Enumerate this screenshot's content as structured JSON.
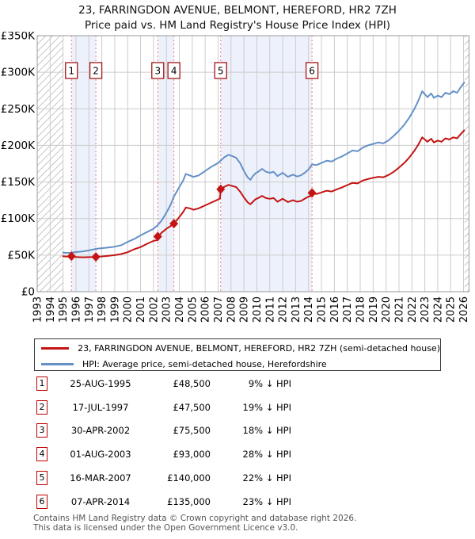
{
  "title": {
    "line1": "23, FARRINGDON AVENUE, BELMONT, HEREFORD, HR2 7ZH",
    "line2": "Price paid vs. HM Land Registry's House Price Index (HPI)"
  },
  "chart_data": {
    "type": "line",
    "x_range": [
      1993,
      2026.42
    ],
    "ylim_k": [
      0,
      350
    ],
    "grid": true,
    "y_ticks": [
      {
        "v": 0,
        "label": "£0"
      },
      {
        "v": 50,
        "label": "£50K"
      },
      {
        "v": 100,
        "label": "£100K"
      },
      {
        "v": 150,
        "label": "£150K"
      },
      {
        "v": 200,
        "label": "£200K"
      },
      {
        "v": 250,
        "label": "£250K"
      },
      {
        "v": 300,
        "label": "£300K"
      },
      {
        "v": 350,
        "label": "£350K"
      }
    ],
    "x_ticks": [
      1993,
      1994,
      1995,
      1996,
      1997,
      1998,
      1999,
      2000,
      2001,
      2002,
      2003,
      2004,
      2005,
      2006,
      2007,
      2008,
      2009,
      2010,
      2011,
      2012,
      2013,
      2014,
      2015,
      2016,
      2017,
      2018,
      2019,
      2020,
      2021,
      2022,
      2023,
      2024,
      2025,
      2026
    ],
    "series": [
      {
        "name": "hpi",
        "color": "#6591c8",
        "points": [
          [
            1995.0,
            53.5
          ],
          [
            1995.3,
            53
          ],
          [
            1995.65,
            53.3
          ],
          [
            1996.0,
            54.2
          ],
          [
            1996.5,
            55
          ],
          [
            1997.0,
            56.5
          ],
          [
            1997.54,
            58.5
          ],
          [
            1998.0,
            59.5
          ],
          [
            1998.5,
            60.5
          ],
          [
            1999.0,
            61.5
          ],
          [
            1999.5,
            63.5
          ],
          [
            2000.0,
            68
          ],
          [
            2000.5,
            72
          ],
          [
            2001.0,
            77
          ],
          [
            2001.5,
            81.5
          ],
          [
            2002.0,
            86
          ],
          [
            2002.33,
            91
          ],
          [
            2002.66,
            98
          ],
          [
            2003.0,
            108
          ],
          [
            2003.3,
            118
          ],
          [
            2003.58,
            130
          ],
          [
            2004.0,
            143
          ],
          [
            2004.3,
            152
          ],
          [
            2004.5,
            161
          ],
          [
            2004.8,
            159
          ],
          [
            2005.1,
            157
          ],
          [
            2005.5,
            159
          ],
          [
            2006.0,
            165
          ],
          [
            2006.5,
            171
          ],
          [
            2007.0,
            176
          ],
          [
            2007.2,
            179
          ],
          [
            2007.5,
            184
          ],
          [
            2007.8,
            187
          ],
          [
            2008.0,
            186
          ],
          [
            2008.4,
            183
          ],
          [
            2008.7,
            176
          ],
          [
            2009.0,
            165
          ],
          [
            2009.3,
            156
          ],
          [
            2009.5,
            153
          ],
          [
            2009.7,
            158
          ],
          [
            2009.9,
            162
          ],
          [
            2010.1,
            164
          ],
          [
            2010.4,
            168
          ],
          [
            2010.7,
            164
          ],
          [
            2011.0,
            162.5
          ],
          [
            2011.3,
            164
          ],
          [
            2011.6,
            158
          ],
          [
            2012.0,
            162.5
          ],
          [
            2012.4,
            157
          ],
          [
            2012.8,
            160
          ],
          [
            2013.1,
            157.5
          ],
          [
            2013.4,
            159
          ],
          [
            2013.7,
            162.5
          ],
          [
            2014.0,
            167
          ],
          [
            2014.27,
            174
          ],
          [
            2014.6,
            173
          ],
          [
            2015.0,
            176
          ],
          [
            2015.4,
            179
          ],
          [
            2015.8,
            178
          ],
          [
            2016.2,
            182
          ],
          [
            2016.6,
            185
          ],
          [
            2017.0,
            189
          ],
          [
            2017.4,
            193
          ],
          [
            2017.8,
            192
          ],
          [
            2018.2,
            197
          ],
          [
            2018.6,
            200
          ],
          [
            2019.0,
            202
          ],
          [
            2019.4,
            204
          ],
          [
            2019.8,
            203
          ],
          [
            2020.2,
            207
          ],
          [
            2020.6,
            213
          ],
          [
            2021.0,
            220
          ],
          [
            2021.4,
            228
          ],
          [
            2021.8,
            238
          ],
          [
            2022.2,
            250
          ],
          [
            2022.5,
            261
          ],
          [
            2022.8,
            274
          ],
          [
            2023.0,
            270
          ],
          [
            2023.2,
            266
          ],
          [
            2023.5,
            271
          ],
          [
            2023.7,
            265
          ],
          [
            2024.0,
            268
          ],
          [
            2024.3,
            266
          ],
          [
            2024.6,
            272
          ],
          [
            2024.9,
            270
          ],
          [
            2025.2,
            274
          ],
          [
            2025.5,
            272
          ],
          [
            2025.8,
            280
          ],
          [
            2026.05,
            286
          ]
        ]
      },
      {
        "name": "property",
        "color": "#c41414",
        "points": [
          [
            1995.0,
            48.5
          ],
          [
            1995.3,
            48
          ],
          [
            1995.65,
            48.5
          ],
          [
            1996.0,
            47.5
          ],
          [
            1996.5,
            47
          ],
          [
            1997.0,
            47.2
          ],
          [
            1997.54,
            47.5
          ],
          [
            1998.0,
            48.2
          ],
          [
            1998.5,
            49
          ],
          [
            1999.0,
            50
          ],
          [
            1999.5,
            51.5
          ],
          [
            2000.0,
            54
          ],
          [
            2000.5,
            58
          ],
          [
            2001.0,
            61
          ],
          [
            2001.5,
            65.5
          ],
          [
            2002.0,
            69.5
          ],
          [
            2002.3,
            70.5
          ],
          [
            2002.33,
            75.5
          ],
          [
            2002.66,
            81
          ],
          [
            2003.0,
            86
          ],
          [
            2003.3,
            89.5
          ],
          [
            2003.58,
            93
          ],
          [
            2004.0,
            102
          ],
          [
            2004.3,
            109
          ],
          [
            2004.5,
            115
          ],
          [
            2004.8,
            114
          ],
          [
            2005.1,
            112
          ],
          [
            2005.5,
            114
          ],
          [
            2006.0,
            118
          ],
          [
            2006.5,
            122
          ],
          [
            2007.0,
            126
          ],
          [
            2007.15,
            127.5
          ],
          [
            2007.2,
            140
          ],
          [
            2007.5,
            143.5
          ],
          [
            2007.8,
            146
          ],
          [
            2008.0,
            145
          ],
          [
            2008.4,
            143
          ],
          [
            2008.7,
            137
          ],
          [
            2009.0,
            129
          ],
          [
            2009.3,
            122
          ],
          [
            2009.5,
            119.5
          ],
          [
            2009.7,
            123
          ],
          [
            2009.9,
            126.5
          ],
          [
            2010.1,
            128
          ],
          [
            2010.4,
            131
          ],
          [
            2010.7,
            128
          ],
          [
            2011.0,
            127
          ],
          [
            2011.3,
            128
          ],
          [
            2011.6,
            123
          ],
          [
            2012.0,
            127
          ],
          [
            2012.4,
            122.5
          ],
          [
            2012.8,
            125
          ],
          [
            2013.1,
            123
          ],
          [
            2013.4,
            124
          ],
          [
            2013.7,
            127
          ],
          [
            2014.0,
            130
          ],
          [
            2014.2,
            131
          ],
          [
            2014.27,
            135
          ],
          [
            2014.6,
            133.5
          ],
          [
            2015.0,
            135.7
          ],
          [
            2015.4,
            138
          ],
          [
            2015.8,
            137
          ],
          [
            2016.2,
            140
          ],
          [
            2016.6,
            142.6
          ],
          [
            2017.0,
            145.7
          ],
          [
            2017.4,
            148.8
          ],
          [
            2017.8,
            148
          ],
          [
            2018.2,
            152
          ],
          [
            2018.6,
            154
          ],
          [
            2019.0,
            155.7
          ],
          [
            2019.4,
            157
          ],
          [
            2019.8,
            156.5
          ],
          [
            2020.2,
            159.6
          ],
          [
            2020.6,
            164
          ],
          [
            2021.0,
            169.6
          ],
          [
            2021.4,
            175.8
          ],
          [
            2021.8,
            183.5
          ],
          [
            2022.2,
            192.8
          ],
          [
            2022.5,
            201
          ],
          [
            2022.8,
            211
          ],
          [
            2023.0,
            208
          ],
          [
            2023.2,
            205
          ],
          [
            2023.5,
            209
          ],
          [
            2023.7,
            204
          ],
          [
            2024.0,
            206.6
          ],
          [
            2024.3,
            205
          ],
          [
            2024.6,
            209.7
          ],
          [
            2024.9,
            208
          ],
          [
            2025.2,
            211
          ],
          [
            2025.5,
            209.7
          ],
          [
            2025.8,
            215.9
          ],
          [
            2026.05,
            220.5
          ]
        ]
      }
    ],
    "sales": [
      {
        "num": "1",
        "year": 1995.65,
        "value_k": 48.5
      },
      {
        "num": "2",
        "year": 1997.54,
        "value_k": 47.5
      },
      {
        "num": "3",
        "year": 2002.33,
        "value_k": 75.5
      },
      {
        "num": "4",
        "year": 2003.58,
        "value_k": 93
      },
      {
        "num": "5",
        "year": 2007.2,
        "value_k": 140
      },
      {
        "num": "6",
        "year": 2014.27,
        "value_k": 135
      }
    ],
    "bands": [
      [
        1995.65,
        1997.54
      ],
      [
        2002.33,
        2003.58
      ],
      [
        2007.2,
        2014.27
      ]
    ],
    "hatch_regions": [
      [
        1993,
        1995.04
      ],
      [
        2026.08,
        2026.42
      ]
    ],
    "colors": {
      "property_line": "#c41414",
      "hpi_line": "#6591c8",
      "sale_dashed_line": "#f47a7a",
      "band_fill": "#edf1fb",
      "grid": "#cccccc",
      "plot_border": "#999999",
      "marker_box_border": "#a31515",
      "hatch": "#bcbcbc"
    }
  },
  "legend": {
    "series": [
      {
        "label": "23, FARRINGDON AVENUE, BELMONT, HEREFORD, HR2 7ZH (semi-detached house)",
        "color": "#c41414"
      },
      {
        "label": "HPI: Average price, semi-detached house, Herefordshire",
        "color": "#6591c8"
      }
    ]
  },
  "table": {
    "rows": [
      {
        "num": "1",
        "date": "25-AUG-1995",
        "price": "£48,500",
        "vs_hpi": "9% ↓ HPI"
      },
      {
        "num": "2",
        "date": "17-JUL-1997",
        "price": "£47,500",
        "vs_hpi": "19% ↓ HPI"
      },
      {
        "num": "3",
        "date": "30-APR-2002",
        "price": "£75,500",
        "vs_hpi": "18% ↓ HPI"
      },
      {
        "num": "4",
        "date": "01-AUG-2003",
        "price": "£93,000",
        "vs_hpi": "28% ↓ HPI"
      },
      {
        "num": "5",
        "date": "16-MAR-2007",
        "price": "£140,000",
        "vs_hpi": "22% ↓ HPI"
      },
      {
        "num": "6",
        "date": "07-APR-2014",
        "price": "£135,000",
        "vs_hpi": "23% ↓ HPI"
      }
    ]
  },
  "footer": {
    "line1": "Contains HM Land Registry data © Crown copyright and database right 2026.",
    "line2": "This data is licensed under the Open Government Licence v3.0."
  }
}
